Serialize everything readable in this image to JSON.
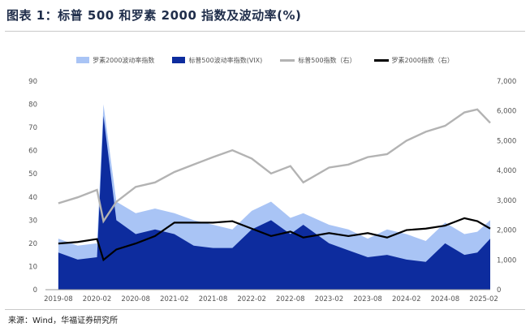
{
  "title": "图表 1：标普 500 和罗素 2000 指数及波动率(%)",
  "source": "来源：Wind，华福证券研究所",
  "colors": {
    "russell_vol": "#a9c4f5",
    "sp_vix": "#0d2c9e",
    "sp_index": "#b3b3b3",
    "russell_index": "#000000"
  },
  "chart_data": {
    "type": "bar+line",
    "legend": [
      {
        "name": "罗素2000波动率指数",
        "kind": "area",
        "color": "#a9c4f5"
      },
      {
        "name": "标普500波动率指数(VIX)",
        "kind": "area",
        "color": "#0d2c9e"
      },
      {
        "name": "标普500指数（右）",
        "kind": "line",
        "color": "#b3b3b3"
      },
      {
        "name": "罗素2000指数（右）",
        "kind": "line",
        "color": "#000000"
      }
    ],
    "legend_position": "top-center",
    "x_tick_labels": [
      "2019-08",
      "2020-02",
      "2020-08",
      "2021-02",
      "2021-08",
      "2022-02",
      "2022-08",
      "2023-02",
      "2023-08",
      "2024-02",
      "2024-08",
      "2025-02"
    ],
    "y_left": {
      "range": [
        0,
        90
      ],
      "ticks": [
        "0",
        "10",
        "20",
        "30",
        "40",
        "50",
        "60",
        "70",
        "80",
        "90"
      ]
    },
    "y_right": {
      "range": [
        0,
        7000
      ],
      "ticks": [
        "0",
        "1,000",
        "2,000",
        "3,000",
        "4,000",
        "5,000",
        "6,000",
        "7,000"
      ]
    },
    "grid": false,
    "x": [
      "2019-08",
      "2019-11",
      "2020-02",
      "2020-03",
      "2020-05",
      "2020-08",
      "2020-11",
      "2021-02",
      "2021-05",
      "2021-08",
      "2021-11",
      "2022-02",
      "2022-05",
      "2022-08",
      "2022-10",
      "2023-02",
      "2023-05",
      "2023-08",
      "2023-11",
      "2024-02",
      "2024-05",
      "2024-08",
      "2024-11",
      "2025-01",
      "2025-03"
    ],
    "series": [
      {
        "name": "罗素2000波动率指数",
        "axis": "left",
        "type": "area",
        "values": [
          22,
          19,
          20,
          80,
          38,
          33,
          35,
          33,
          30,
          28,
          26,
          34,
          38,
          31,
          33,
          28,
          26,
          22,
          26,
          24,
          21,
          29,
          24,
          25,
          30
        ]
      },
      {
        "name": "标普500波动率指数(VIX)",
        "axis": "left",
        "type": "area",
        "values": [
          16,
          13,
          14,
          75,
          30,
          24,
          26,
          24,
          19,
          18,
          18,
          26,
          30,
          24,
          28,
          20,
          17,
          14,
          15,
          13,
          12,
          20,
          15,
          16,
          22
        ]
      },
      {
        "name": "标普500指数（右）",
        "axis": "right",
        "type": "line",
        "values": [
          2900,
          3100,
          3350,
          2300,
          2950,
          3450,
          3600,
          3950,
          4200,
          4450,
          4680,
          4400,
          3900,
          4150,
          3600,
          4100,
          4200,
          4450,
          4550,
          5000,
          5300,
          5500,
          5950,
          6050,
          5600
        ]
      },
      {
        "name": "罗素2000指数（右）",
        "axis": "right",
        "type": "line",
        "values": [
          1550,
          1600,
          1700,
          1000,
          1350,
          1550,
          1800,
          2250,
          2250,
          2250,
          2300,
          2050,
          1800,
          1950,
          1750,
          1900,
          1800,
          1900,
          1750,
          2000,
          2050,
          2150,
          2400,
          2300,
          2050
        ]
      }
    ]
  }
}
